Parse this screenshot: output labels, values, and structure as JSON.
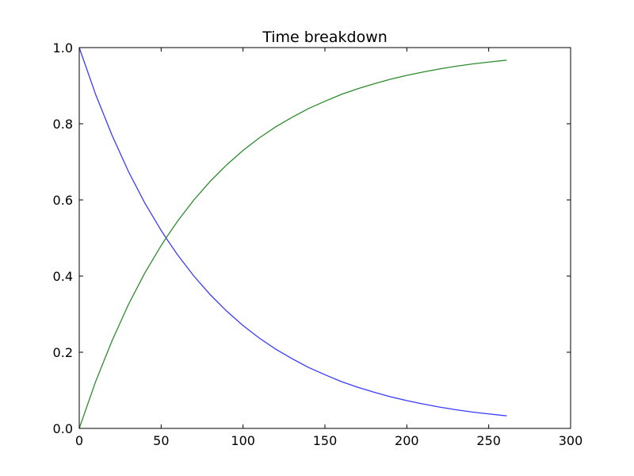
{
  "chart_data": {
    "type": "line",
    "title": "Time breakdown",
    "xlabel": "",
    "ylabel": "",
    "xlim": [
      0,
      300
    ],
    "ylim": [
      0.0,
      1.0
    ],
    "x_ticks": [
      0,
      50,
      100,
      150,
      200,
      250,
      300
    ],
    "y_ticks": [
      0.0,
      0.2,
      0.4,
      0.6,
      0.8,
      1.0
    ],
    "x_tick_labels": [
      "0",
      "50",
      "100",
      "150",
      "200",
      "250",
      "300"
    ],
    "y_tick_labels": [
      "0.0",
      "0.2",
      "0.4",
      "0.6",
      "0.8",
      "1.0"
    ],
    "grid": false,
    "legend": "none",
    "series": [
      {
        "color": "#3a3aff",
        "x": [
          0,
          10,
          20,
          30,
          40,
          50,
          53,
          60,
          70,
          80,
          90,
          100,
          110,
          120,
          130,
          140,
          150,
          160,
          170,
          180,
          190,
          200,
          210,
          220,
          230,
          240,
          250,
          261
        ],
        "values": [
          1.0,
          0.877,
          0.77,
          0.675,
          0.592,
          0.52,
          0.5,
          0.456,
          0.4,
          0.351,
          0.308,
          0.27,
          0.237,
          0.208,
          0.183,
          0.16,
          0.141,
          0.123,
          0.108,
          0.095,
          0.083,
          0.073,
          0.064,
          0.056,
          0.049,
          0.043,
          0.038,
          0.033
        ]
      },
      {
        "color": "#2e8b2e",
        "x": [
          0,
          10,
          20,
          30,
          40,
          50,
          53,
          60,
          70,
          80,
          90,
          100,
          110,
          120,
          130,
          140,
          150,
          160,
          170,
          180,
          190,
          200,
          210,
          220,
          230,
          240,
          250,
          261
        ],
        "values": [
          0.0,
          0.123,
          0.23,
          0.325,
          0.408,
          0.48,
          0.5,
          0.544,
          0.6,
          0.649,
          0.692,
          0.73,
          0.763,
          0.792,
          0.817,
          0.84,
          0.859,
          0.877,
          0.892,
          0.905,
          0.917,
          0.927,
          0.936,
          0.944,
          0.951,
          0.957,
          0.962,
          0.967
        ]
      }
    ]
  }
}
